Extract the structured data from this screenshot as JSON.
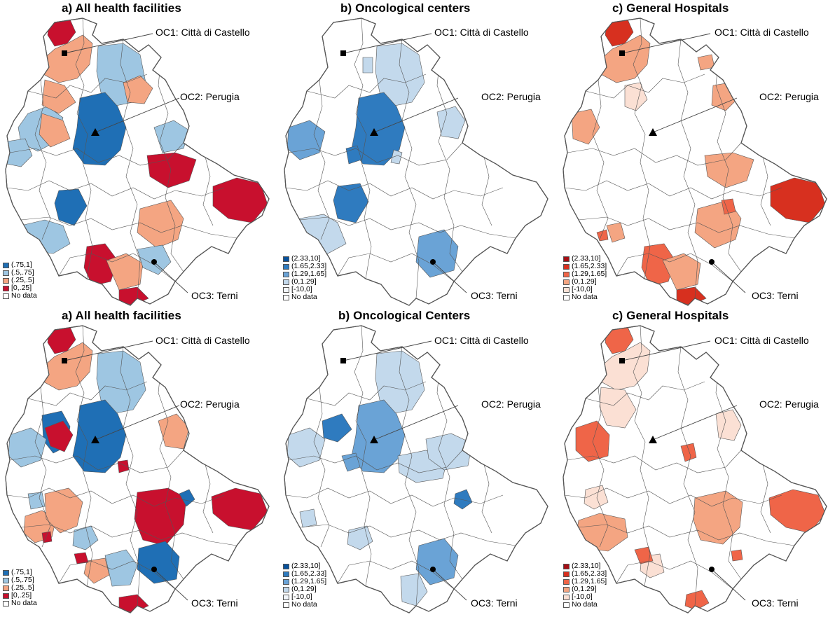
{
  "colors": {
    "outline": "#555555",
    "blue": [
      "#08519c",
      "#2f7bbf",
      "#6aa3d6",
      "#c3d9ec",
      "#f2f6fb",
      "#ffffff"
    ],
    "red": [
      "#a50f15",
      "#d7301f",
      "#ef6548",
      "#f4a582",
      "#fbe0d4",
      "#ffffff"
    ],
    "div": [
      "#1f6fb5",
      "#9ec6e2",
      "#f4a582",
      "#c8102e",
      "#ffffff"
    ]
  },
  "labels": {
    "oc1": "OC1: Città di Castello",
    "oc2": "OC2: Perugia",
    "oc3": "OC3: Terni"
  },
  "legend_quartile": [
    "(.75,1]",
    "(.5,.75]",
    "(.25,.5]",
    "[0,.25]",
    "No data"
  ],
  "legend_ratio": [
    "(2.33,10]",
    "(1.65,2.33]",
    "(1.29,1.65]",
    "(0,1.29]",
    "[-10,0]",
    "No data"
  ],
  "panels": [
    {
      "title": "a) All health facilities",
      "scheme": "div"
    },
    {
      "title": "b) Oncological centers",
      "scheme": "blue"
    },
    {
      "title": "c) General Hospitals",
      "scheme": "red"
    },
    {
      "title": "a) All health facilities",
      "scheme": "div"
    },
    {
      "title": "b) Oncological Centers",
      "scheme": "blue"
    },
    {
      "title": "c) General Hospitals",
      "scheme": "red"
    }
  ]
}
